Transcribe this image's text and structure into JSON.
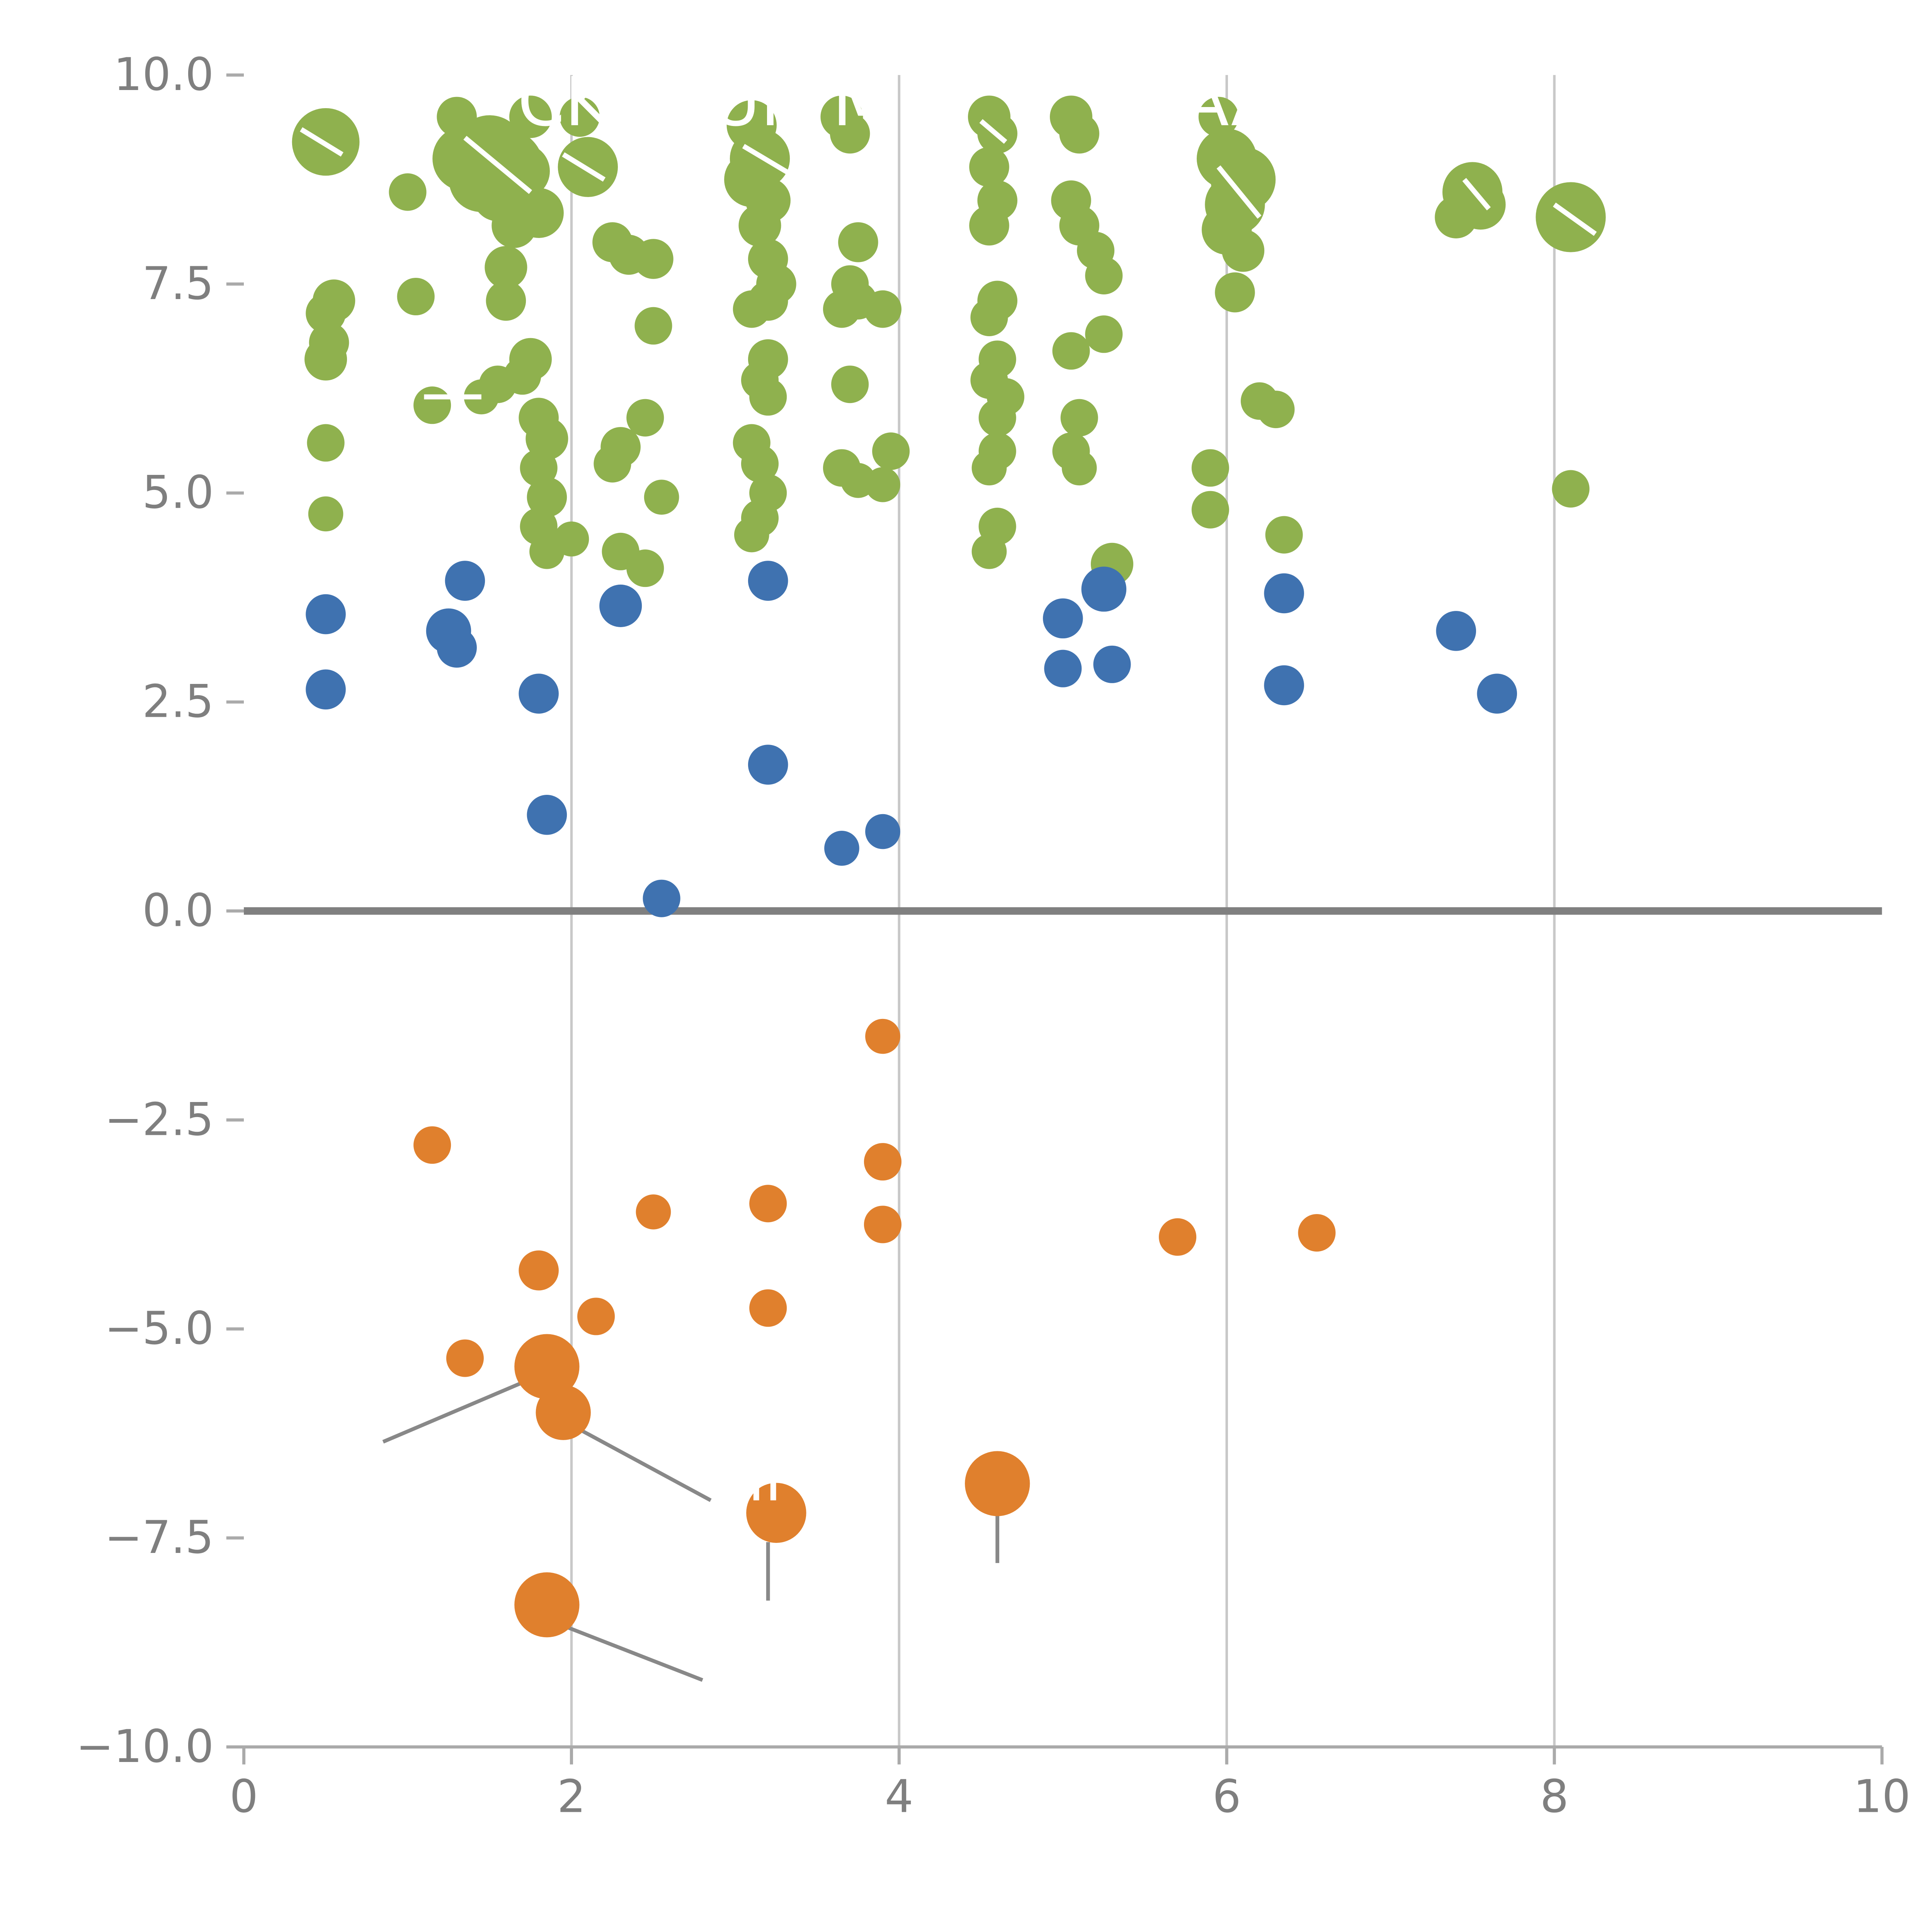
{
  "chart_data": {
    "type": "scatter",
    "title": "CK UN M AAE",
    "xlabel": "",
    "ylabel": "",
    "xlim": [
      0,
      10
    ],
    "ylim": [
      -10,
      10
    ],
    "x_ticks": [
      0,
      2,
      4,
      6,
      8,
      10
    ],
    "x_tick_labels": [
      "0",
      "2",
      "4",
      "6",
      "8",
      "10"
    ],
    "y_tick_values": [
      10.0,
      7.5,
      5.0,
      2.5,
      0.0,
      -2.5,
      -5.0,
      -7.5,
      -10.0
    ],
    "y_tick_labels": [
      "10.0",
      "7.5",
      "5.0",
      "2.5",
      "0.0",
      "−2.5",
      "−5.0",
      "−7.5",
      "−10.0"
    ],
    "gridlines": {
      "vertical_x": [
        2,
        4,
        6,
        8
      ]
    },
    "zero_line_y": 0,
    "colors": {
      "green": "#8fb14e",
      "blue": "#3f72b0",
      "orange": "#e0802d",
      "grid": "#c8c8c8",
      "axis": "#aaaaaa",
      "zero_line": "#808080",
      "annotation_line": "#888888",
      "white_line": "#ffffff",
      "tick_label": "#7f7f7f",
      "title": "#ffffff"
    },
    "series": [
      {
        "name": "green",
        "color": "#8fb14e",
        "points": [
          [
            0.5,
            9.2,
            27
          ],
          [
            0.55,
            7.3,
            17
          ],
          [
            0.5,
            7.15,
            16
          ],
          [
            0.52,
            6.8,
            16
          ],
          [
            0.5,
            6.6,
            17
          ],
          [
            0.5,
            5.6,
            15
          ],
          [
            0.5,
            4.75,
            14
          ],
          [
            1.0,
            8.6,
            15
          ],
          [
            1.05,
            7.35,
            15
          ],
          [
            1.15,
            6.05,
            15
          ],
          [
            1.3,
            9.5,
            16
          ],
          [
            1.35,
            9.0,
            26
          ],
          [
            1.5,
            9.1,
            28
          ],
          [
            1.45,
            8.75,
            26
          ],
          [
            1.6,
            8.9,
            30
          ],
          [
            1.7,
            8.85,
            22
          ],
          [
            1.55,
            8.55,
            20
          ],
          [
            1.75,
            9.5,
            17
          ],
          [
            1.65,
            8.2,
            18
          ],
          [
            1.8,
            8.35,
            20
          ],
          [
            1.45,
            6.15,
            14
          ],
          [
            1.55,
            6.3,
            15
          ],
          [
            1.6,
            7.7,
            17
          ],
          [
            1.6,
            7.3,
            16
          ],
          [
            1.75,
            6.6,
            17
          ],
          [
            1.7,
            6.4,
            15
          ],
          [
            1.8,
            5.9,
            16
          ],
          [
            1.85,
            5.65,
            17
          ],
          [
            1.8,
            5.3,
            15
          ],
          [
            1.85,
            4.95,
            16
          ],
          [
            1.8,
            4.6,
            15
          ],
          [
            1.85,
            4.3,
            14
          ],
          [
            2.0,
            4.45,
            14
          ],
          [
            2.05,
            9.5,
            16
          ],
          [
            2.1,
            8.9,
            24
          ],
          [
            2.25,
            8.0,
            16
          ],
          [
            2.35,
            7.85,
            16
          ],
          [
            2.3,
            5.55,
            16
          ],
          [
            2.25,
            5.35,
            15
          ],
          [
            2.3,
            4.3,
            15
          ],
          [
            2.45,
            4.1,
            15
          ],
          [
            2.5,
            7.8,
            16
          ],
          [
            2.5,
            7.0,
            15
          ],
          [
            2.45,
            5.9,
            15
          ],
          [
            2.55,
            4.95,
            14
          ],
          [
            3.1,
            9.4,
            20
          ],
          [
            3.15,
            9.0,
            24
          ],
          [
            3.1,
            8.75,
            22
          ],
          [
            3.2,
            8.5,
            18
          ],
          [
            3.15,
            8.2,
            17
          ],
          [
            3.2,
            7.8,
            16
          ],
          [
            3.25,
            7.5,
            16
          ],
          [
            3.2,
            7.3,
            16
          ],
          [
            3.1,
            7.2,
            15
          ],
          [
            3.2,
            6.6,
            16
          ],
          [
            3.15,
            6.35,
            15
          ],
          [
            3.2,
            6.15,
            15
          ],
          [
            3.1,
            5.6,
            15
          ],
          [
            3.15,
            5.35,
            15
          ],
          [
            3.2,
            5.0,
            15
          ],
          [
            3.15,
            4.7,
            15
          ],
          [
            3.1,
            4.5,
            14
          ],
          [
            3.65,
            9.5,
            17
          ],
          [
            3.7,
            9.3,
            16
          ],
          [
            3.75,
            8.0,
            16
          ],
          [
            3.7,
            7.5,
            15
          ],
          [
            3.75,
            7.3,
            15
          ],
          [
            3.65,
            7.2,
            15
          ],
          [
            3.7,
            6.3,
            15
          ],
          [
            3.65,
            5.3,
            15
          ],
          [
            3.75,
            5.15,
            14
          ],
          [
            3.9,
            7.2,
            15
          ],
          [
            3.95,
            5.5,
            15
          ],
          [
            3.9,
            5.1,
            14
          ],
          [
            4.55,
            9.5,
            17
          ],
          [
            4.6,
            9.3,
            16
          ],
          [
            4.55,
            8.9,
            16
          ],
          [
            4.6,
            8.5,
            16
          ],
          [
            4.55,
            8.2,
            16
          ],
          [
            4.6,
            7.3,
            16
          ],
          [
            4.55,
            7.1,
            15
          ],
          [
            4.6,
            6.6,
            15
          ],
          [
            4.55,
            6.35,
            15
          ],
          [
            4.65,
            6.15,
            15
          ],
          [
            4.6,
            5.9,
            15
          ],
          [
            4.6,
            5.5,
            15
          ],
          [
            4.55,
            5.3,
            14
          ],
          [
            4.6,
            4.6,
            15
          ],
          [
            4.55,
            4.3,
            14
          ],
          [
            5.05,
            9.5,
            17
          ],
          [
            5.1,
            9.3,
            16
          ],
          [
            5.05,
            8.5,
            16
          ],
          [
            5.1,
            8.2,
            16
          ],
          [
            5.2,
            7.9,
            15
          ],
          [
            5.25,
            7.6,
            15
          ],
          [
            5.05,
            6.7,
            15
          ],
          [
            5.25,
            6.9,
            15
          ],
          [
            5.1,
            5.9,
            15
          ],
          [
            5.05,
            5.5,
            15
          ],
          [
            5.1,
            5.3,
            14
          ],
          [
            5.3,
            4.15,
            17
          ],
          [
            5.95,
            9.5,
            16
          ],
          [
            6.0,
            9.0,
            24
          ],
          [
            6.1,
            8.75,
            26
          ],
          [
            6.05,
            8.45,
            24
          ],
          [
            6.0,
            8.15,
            20
          ],
          [
            6.1,
            7.9,
            17
          ],
          [
            6.05,
            7.4,
            16
          ],
          [
            5.9,
            5.3,
            15
          ],
          [
            5.9,
            4.8,
            15
          ],
          [
            6.2,
            6.1,
            15
          ],
          [
            6.3,
            6.0,
            15
          ],
          [
            6.35,
            4.5,
            15
          ],
          [
            7.4,
            8.3,
            17
          ],
          [
            7.5,
            8.6,
            24
          ],
          [
            7.55,
            8.45,
            20
          ],
          [
            8.1,
            8.3,
            28
          ],
          [
            8.1,
            5.05,
            15
          ]
        ]
      },
      {
        "name": "blue",
        "color": "#3f72b0",
        "points": [
          [
            0.5,
            3.55,
            16
          ],
          [
            0.5,
            2.65,
            16
          ],
          [
            1.25,
            3.35,
            18
          ],
          [
            1.3,
            3.15,
            16
          ],
          [
            1.35,
            3.95,
            16
          ],
          [
            1.8,
            2.6,
            16
          ],
          [
            1.85,
            1.15,
            16
          ],
          [
            2.3,
            3.65,
            17
          ],
          [
            2.55,
            0.15,
            15
          ],
          [
            3.2,
            3.95,
            16
          ],
          [
            3.2,
            1.75,
            16
          ],
          [
            3.65,
            0.75,
            14
          ],
          [
            3.9,
            0.95,
            14
          ],
          [
            5.0,
            3.5,
            16
          ],
          [
            5.0,
            2.9,
            15
          ],
          [
            5.25,
            3.85,
            18
          ],
          [
            5.3,
            2.95,
            15
          ],
          [
            6.35,
            3.8,
            16
          ],
          [
            6.35,
            2.7,
            16
          ],
          [
            7.4,
            3.35,
            16
          ],
          [
            7.65,
            2.6,
            16
          ]
        ]
      },
      {
        "name": "orange",
        "color": "#e0802d",
        "points": [
          [
            1.15,
            -2.8,
            15
          ],
          [
            1.35,
            -5.35,
            15
          ],
          [
            1.8,
            -4.3,
            16
          ],
          [
            1.85,
            -5.45,
            26
          ],
          [
            1.95,
            -6.0,
            22
          ],
          [
            2.15,
            -4.85,
            15
          ],
          [
            2.5,
            -3.6,
            14
          ],
          [
            3.2,
            -3.5,
            15
          ],
          [
            3.2,
            -4.75,
            15
          ],
          [
            3.25,
            -7.2,
            24
          ],
          [
            1.85,
            -8.3,
            26
          ],
          [
            3.9,
            -1.5,
            14
          ],
          [
            3.9,
            -3.0,
            15
          ],
          [
            3.9,
            -3.75,
            15
          ],
          [
            4.6,
            -6.85,
            26
          ],
          [
            5.7,
            -3.9,
            15
          ],
          [
            6.55,
            -3.85,
            15
          ]
        ]
      }
    ],
    "annotation_lines": [
      [
        [
          0.85,
          -6.35
        ],
        [
          1.75,
          -5.6
        ]
      ],
      [
        [
          2.0,
          -6.15
        ],
        [
          2.85,
          -7.05
        ]
      ],
      [
        [
          3.2,
          -7.55
        ],
        [
          3.2,
          -8.25
        ]
      ],
      [
        [
          4.6,
          -7.15
        ],
        [
          4.6,
          -7.8
        ]
      ],
      [
        [
          1.95,
          -8.55
        ],
        [
          2.8,
          -9.2
        ]
      ]
    ],
    "white_lines": [
      [
        [
          0.35,
          9.35
        ],
        [
          0.6,
          9.05
        ]
      ],
      [
        [
          1.35,
          9.25
        ],
        [
          1.75,
          8.6
        ]
      ],
      [
        [
          1.95,
          9.05
        ],
        [
          2.2,
          8.75
        ]
      ],
      [
        [
          3.05,
          9.15
        ],
        [
          3.35,
          8.8
        ]
      ],
      [
        [
          4.5,
          9.45
        ],
        [
          4.65,
          9.2
        ]
      ],
      [
        [
          5.95,
          8.9
        ],
        [
          6.2,
          8.3
        ]
      ],
      [
        [
          7.45,
          8.75
        ],
        [
          7.6,
          8.4
        ]
      ],
      [
        [
          8.0,
          8.45
        ],
        [
          8.25,
          8.1
        ]
      ],
      [
        [
          1.1,
          6.15
        ],
        [
          1.45,
          6.15
        ]
      ]
    ],
    "text_fragments": [
      {
        "text": "CK",
        "x": 1.95,
        "y": 9.4,
        "size": 54,
        "color": "#ffffff"
      },
      {
        "text": "UN M",
        "x": 3.4,
        "y": 9.4,
        "size": 54,
        "color": "#ffffff"
      },
      {
        "text": "AAE",
        "x": 6.15,
        "y": 9.4,
        "size": 54,
        "color": "#ffffff"
      },
      {
        "text": "II",
        "x": 3.18,
        "y": -7.05,
        "size": 46,
        "color": "#ffffff"
      }
    ],
    "legend": null
  }
}
